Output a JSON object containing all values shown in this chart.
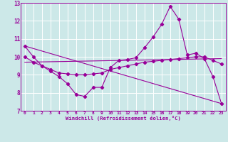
{
  "xlabel": "Windchill (Refroidissement éolien,°C)",
  "bg_color": "#cce8e8",
  "grid_color": "#ffffff",
  "line_color": "#990099",
  "xlim": [
    -0.5,
    23.5
  ],
  "ylim": [
    7,
    13
  ],
  "xticks": [
    0,
    1,
    2,
    3,
    4,
    5,
    6,
    7,
    8,
    9,
    10,
    11,
    12,
    13,
    14,
    15,
    16,
    17,
    18,
    19,
    20,
    21,
    22,
    23
  ],
  "yticks": [
    7,
    8,
    9,
    10,
    11,
    12,
    13
  ],
  "curve1_x": [
    0,
    1,
    2,
    3,
    4,
    5,
    6,
    7,
    8,
    9,
    10,
    11,
    12,
    13,
    14,
    15,
    16,
    17,
    18,
    19,
    20,
    21,
    22,
    23
  ],
  "curve1_y": [
    10.6,
    10.0,
    9.5,
    9.2,
    8.9,
    8.5,
    7.9,
    7.8,
    8.3,
    8.3,
    9.4,
    9.8,
    9.85,
    9.95,
    10.5,
    11.1,
    11.8,
    12.8,
    12.1,
    10.1,
    10.2,
    9.9,
    8.9,
    7.4
  ],
  "curve2_x": [
    0,
    1,
    2,
    3,
    4,
    5,
    6,
    7,
    8,
    9,
    10,
    11,
    12,
    13,
    14,
    15,
    16,
    17,
    18,
    19,
    20,
    21,
    22,
    23
  ],
  "curve2_y": [
    10.0,
    9.7,
    9.5,
    9.3,
    9.1,
    9.05,
    9.0,
    9.0,
    9.05,
    9.1,
    9.3,
    9.4,
    9.5,
    9.6,
    9.7,
    9.75,
    9.8,
    9.85,
    9.9,
    9.95,
    10.0,
    10.0,
    9.8,
    9.6
  ],
  "line1_x": [
    0,
    23
  ],
  "line1_y": [
    10.6,
    7.4
  ],
  "line2_x": [
    0,
    23
  ],
  "line2_y": [
    9.7,
    9.9
  ]
}
